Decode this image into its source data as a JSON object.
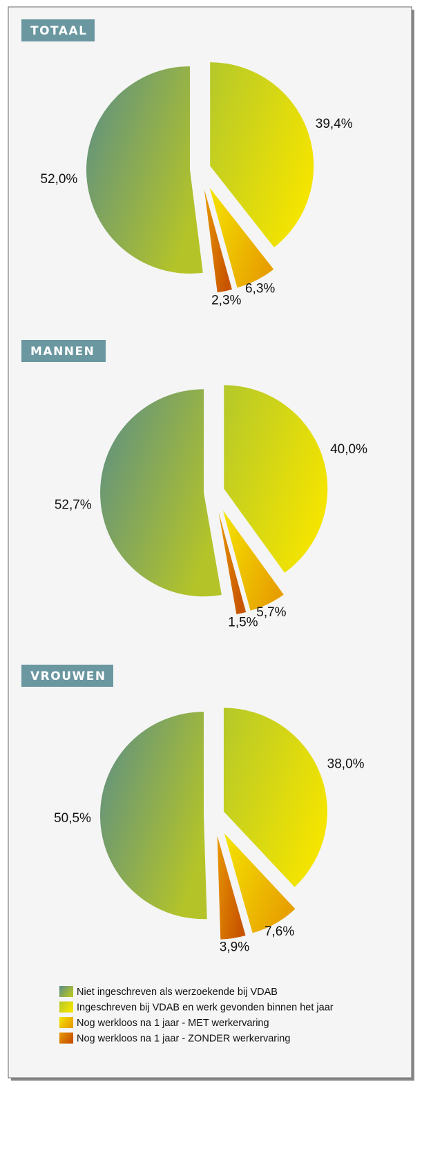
{
  "chart_data": [
    {
      "type": "pie",
      "title": "TOTAAL",
      "values": [
        39.4,
        6.3,
        2.3,
        52.0
      ],
      "value_labels": [
        "39,4%",
        "6,3%",
        "2,3%",
        "52,0%"
      ]
    },
    {
      "type": "pie",
      "title": "MANNEN",
      "values": [
        40.0,
        5.7,
        1.5,
        52.7
      ],
      "value_labels": [
        "40,0%",
        "5,7%",
        "1,5%",
        "52,7%"
      ]
    },
    {
      "type": "pie",
      "title": "VROUWEN",
      "values": [
        38.0,
        7.6,
        3.9,
        50.5
      ],
      "value_labels": [
        "38,0%",
        "7,6%",
        "3,9%",
        "50,5%"
      ]
    }
  ],
  "legend": [
    {
      "name": "Ingeschreven bij VDAB en werk gevonden binnen het jaar",
      "colors": [
        "#b4c82a",
        "#f4e400"
      ]
    },
    {
      "name": "Nog werkloos na 1 jaar - MET werkervaring",
      "colors": [
        "#f4e400",
        "#e8a000"
      ]
    },
    {
      "name": "Nog werkloos na 1 jaar - ZONDER werkervaring",
      "colors": [
        "#e89800",
        "#c85400"
      ]
    },
    {
      "name": "Niet ingeschreven als werzoekende bij VDAB",
      "colors": [
        "#5a8e86",
        "#b4c428"
      ]
    }
  ]
}
